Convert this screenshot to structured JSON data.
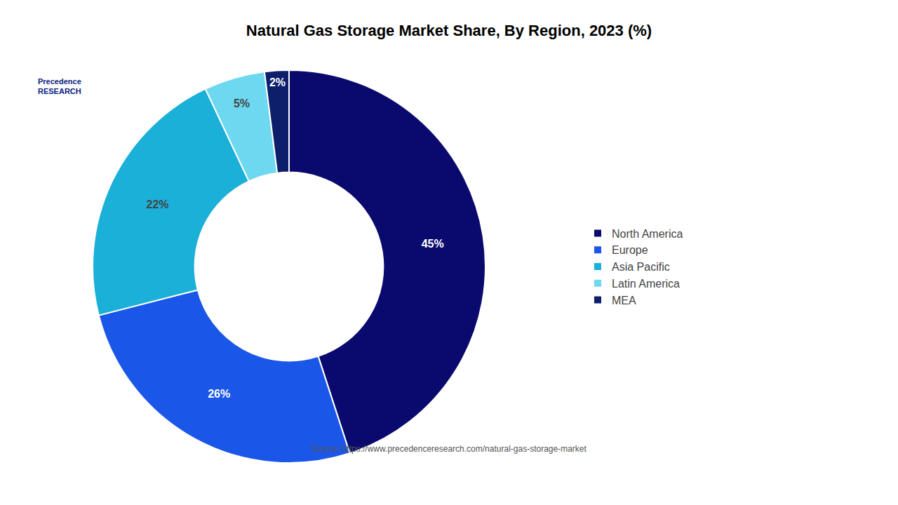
{
  "chart_data": {
    "type": "donut",
    "title": "Natural Gas Storage Market Share, By Region, 2023 (%)",
    "categories": [
      "North America",
      "Europe",
      "Asia Pacific",
      "Latin America",
      "MEA"
    ],
    "values": [
      45,
      26,
      22,
      5,
      2
    ],
    "value_labels": [
      "45%",
      "26%",
      "22%",
      "5%",
      "2%"
    ],
    "data_labels": true,
    "colors": [
      "#0a0a6e",
      "#1a56e8",
      "#1ab0d8",
      "#6dd8f0",
      "#0d1e6b"
    ],
    "legend": "right",
    "annotations": [
      "Source: https://www.precedenceresearch.com/natural-gas-storage-market",
      "Precedence\nRESEARCH"
    ]
  }
}
